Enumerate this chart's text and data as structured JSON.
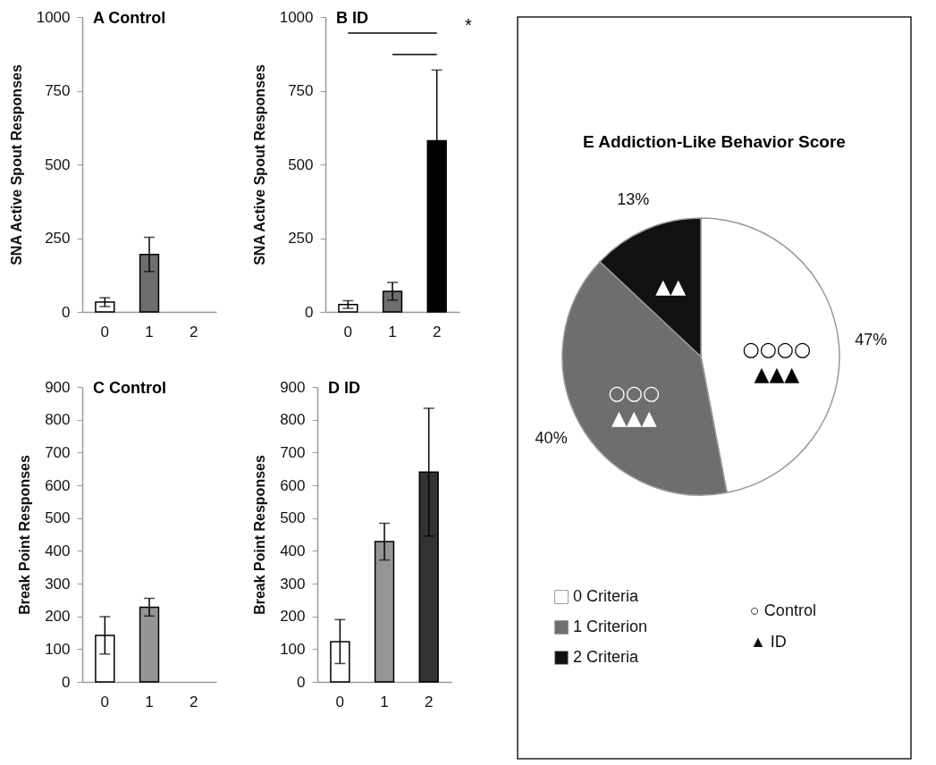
{
  "chart_data": [
    {
      "type": "bar",
      "title": "A Control",
      "ylabel": "SNA Active Spout Responses",
      "categories": [
        "0",
        "1",
        "2"
      ],
      "values": [
        33,
        195,
        null
      ],
      "errors": [
        15,
        58,
        null
      ],
      "colors": [
        "#ffffff",
        "#6e6e6e",
        "#000000"
      ],
      "ylim": [
        0,
        1000
      ],
      "yticks": [
        0,
        250,
        500,
        750,
        1000
      ],
      "grid": false
    },
    {
      "type": "bar",
      "title": "B ID",
      "ylabel": "SNA Active Spout Responses",
      "categories": [
        "0",
        "1",
        "2"
      ],
      "values": [
        25,
        70,
        580
      ],
      "errors": [
        13,
        30,
        240
      ],
      "colors": [
        "#ffffff",
        "#6e6e6e",
        "#000000"
      ],
      "ylim": [
        0,
        1000
      ],
      "yticks": [
        0,
        250,
        500,
        750,
        1000
      ],
      "grid": false,
      "annotations": [
        "*"
      ]
    },
    {
      "type": "bar",
      "title": "C Control",
      "ylabel": "Break Point Responses",
      "categories": [
        "0",
        "1",
        "2"
      ],
      "values": [
        142,
        228,
        null
      ],
      "errors": [
        57,
        27,
        null
      ],
      "colors": [
        "#ffffff",
        "#959595",
        "#333333"
      ],
      "ylim": [
        0,
        900
      ],
      "yticks": [
        0,
        100,
        200,
        300,
        400,
        500,
        600,
        700,
        800,
        900
      ],
      "grid": false
    },
    {
      "type": "bar",
      "title": "D ID",
      "ylabel": "Break Point Responses",
      "categories": [
        "0",
        "1",
        "2"
      ],
      "values": [
        123,
        428,
        640
      ],
      "errors": [
        67,
        56,
        195
      ],
      "colors": [
        "#ffffff",
        "#959595",
        "#333333"
      ],
      "ylim": [
        0,
        900
      ],
      "yticks": [
        0,
        100,
        200,
        300,
        400,
        500,
        600,
        700,
        800,
        900
      ],
      "grid": false
    },
    {
      "type": "pie",
      "title": "E Addiction-Like Behavior Score",
      "categories": [
        "0 Criteria",
        "1 Criterion",
        "2 Criteria"
      ],
      "values": [
        47,
        40,
        13
      ],
      "value_labels": [
        "47%",
        "40%",
        "13%"
      ],
      "colors": [
        "#ffffff",
        "#6e6e6e",
        "#111111"
      ],
      "legend": "bottom left",
      "annotations": [
        {
          "text": "○○○○\n▲▲▲",
          "x": "0 Criteria"
        },
        {
          "text": "○○○\n▲▲▲",
          "x": "1 Criterion"
        },
        {
          "text": "▲▲",
          "x": "2 Criteria"
        },
        "○ Control",
        "▲ ID"
      ]
    }
  ]
}
